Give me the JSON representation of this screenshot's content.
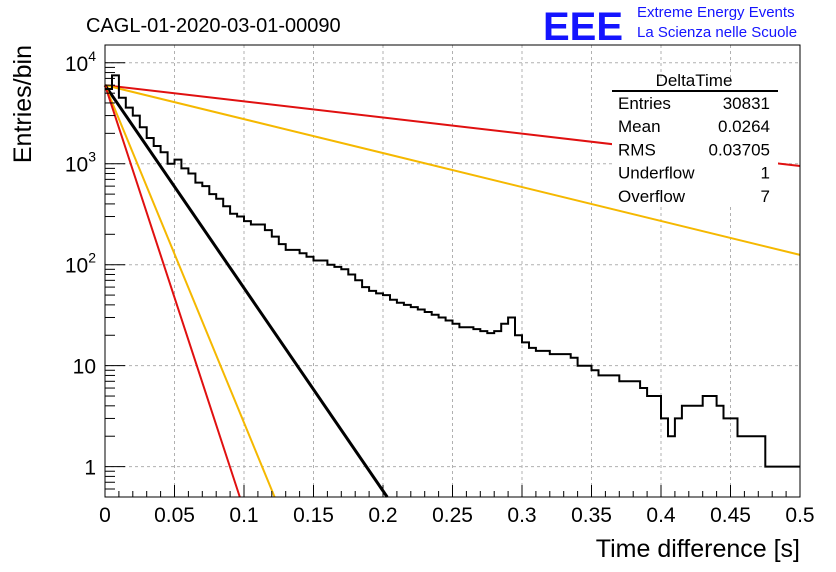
{
  "title": "CAGL-01-2020-03-01-00090",
  "logo": {
    "mark": "EEE",
    "line1": "Extreme Energy Events",
    "line2": "La Scienza nelle Scuole"
  },
  "stats_box": {
    "title": "DeltaTime",
    "rows": [
      {
        "label": "Entries",
        "value": "30831"
      },
      {
        "label": "Mean",
        "value": "0.0264"
      },
      {
        "label": "RMS",
        "value": "0.03705"
      },
      {
        "label": "Underflow",
        "value": "1"
      },
      {
        "label": "Overflow",
        "value": "7"
      }
    ]
  },
  "colors": {
    "histogram": "#000000",
    "fit": "#000000",
    "red_band": "#e01010",
    "yellow_band": "#f5b800",
    "grid": "#b0b0b0"
  },
  "chart_data": {
    "type": "line",
    "title": "CAGL-01-2020-03-01-00090",
    "xlabel": "Time difference [s]",
    "ylabel": "Entries/bin",
    "xlim": [
      0,
      0.5
    ],
    "ylim": [
      0.5,
      15000
    ],
    "yscale": "log",
    "grid": true,
    "legend": "none",
    "x_tick_labels": [
      "0",
      "0.05",
      "0.1",
      "0.15",
      "0.2",
      "0.25",
      "0.3",
      "0.35",
      "0.4",
      "0.45",
      "0.5"
    ],
    "y_tick_labels": [
      {
        "value": 1,
        "base": "1",
        "exp": ""
      },
      {
        "value": 10,
        "base": "10",
        "exp": ""
      },
      {
        "value": 100,
        "base": "10",
        "exp": "2"
      },
      {
        "value": 1000,
        "base": "10",
        "exp": "3"
      },
      {
        "value": 10000,
        "base": "10",
        "exp": "4"
      }
    ],
    "histogram": {
      "bin_width": 0.005,
      "x_start": 0,
      "counts": [
        5500,
        7500,
        4500,
        3600,
        3000,
        2300,
        1800,
        1500,
        1300,
        1000,
        1100,
        900,
        800,
        650,
        600,
        500,
        450,
        380,
        320,
        300,
        270,
        250,
        250,
        220,
        190,
        160,
        140,
        140,
        130,
        120,
        110,
        110,
        100,
        95,
        90,
        80,
        70,
        60,
        55,
        52,
        50,
        45,
        42,
        40,
        38,
        36,
        34,
        32,
        30,
        28,
        26,
        24,
        24,
        23,
        22,
        21,
        22,
        26,
        30,
        20,
        17,
        15,
        14,
        14,
        13,
        13,
        13,
        12,
        10,
        10,
        9,
        8,
        8,
        8,
        7,
        7,
        7,
        6,
        5,
        5,
        3,
        2,
        3,
        4,
        4,
        4,
        5,
        5,
        4,
        3,
        3,
        2,
        2,
        2,
        2,
        1,
        1,
        1,
        1,
        1
      ]
    },
    "series": [
      {
        "x": [
          0,
          0.5
        ],
        "y": [
          6000,
          950
        ],
        "color": "#e01010"
      },
      {
        "x": [
          0,
          0.5
        ],
        "y": [
          6000,
          125
        ],
        "color": "#f5b800"
      },
      {
        "x": [
          0,
          0.203
        ],
        "y": [
          6000,
          0.5
        ],
        "color": "#000000"
      },
      {
        "x": [
          0,
          0.122
        ],
        "y": [
          6000,
          0.5
        ],
        "color": "#f5b800"
      },
      {
        "x": [
          0,
          0.097
        ],
        "y": [
          6000,
          0.5
        ],
        "color": "#e01010"
      }
    ]
  }
}
